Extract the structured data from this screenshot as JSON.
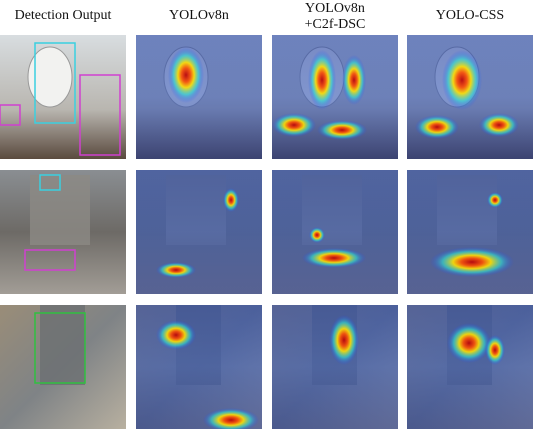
{
  "columns": [
    {
      "lines": [
        "Detection Output"
      ]
    },
    {
      "lines": [
        "YOLOv8n"
      ]
    },
    {
      "lines": [
        "YOLOv8n",
        "+C2f-DSC"
      ]
    },
    {
      "lines": [
        "YOLO-CSS"
      ]
    }
  ]
}
